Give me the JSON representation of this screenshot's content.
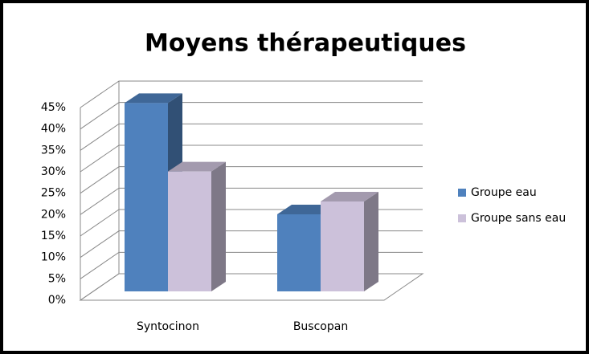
{
  "chart_data": {
    "type": "bar3d",
    "title": "Moyens thérapeutiques",
    "categories": [
      "Syntocinon",
      "Buscopan"
    ],
    "series": [
      {
        "name": "Groupe eau",
        "color": "#4f81bd",
        "values": [
          44,
          18
        ]
      },
      {
        "name": "Groupe sans eau",
        "color": "#ccc1da",
        "values": [
          28,
          21
        ]
      }
    ],
    "ylim": [
      0,
      45
    ],
    "yticks": [
      {
        "value": 0,
        "label": "0%"
      },
      {
        "value": 5,
        "label": "5%"
      },
      {
        "value": 10,
        "label": "10%"
      },
      {
        "value": 15,
        "label": "15%"
      },
      {
        "value": 20,
        "label": "20%"
      },
      {
        "value": 25,
        "label": "25%"
      },
      {
        "value": 30,
        "label": "30%"
      },
      {
        "value": 35,
        "label": "35%"
      },
      {
        "value": 40,
        "label": "40%"
      },
      {
        "value": 45,
        "label": "45%"
      }
    ],
    "grid": true,
    "legend": "right"
  }
}
